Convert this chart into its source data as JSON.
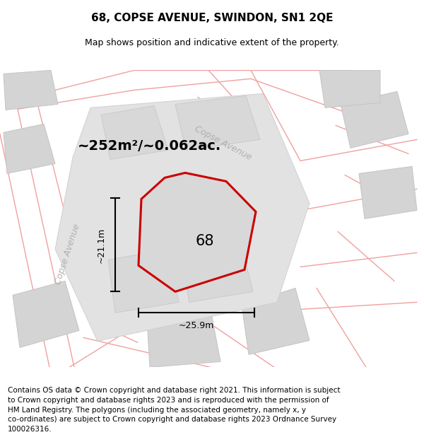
{
  "title": "68, COPSE AVENUE, SWINDON, SN1 2QE",
  "subtitle": "Map shows position and indicative extent of the property.",
  "area_label": "~252m²/~0.062ac.",
  "plot_number": "68",
  "dim_width": "~25.9m",
  "dim_height": "~21.1m",
  "road_label_left": "Copse Avenue",
  "road_label_top": "Copse Avenue",
  "footer_lines": [
    "Contains OS data © Crown copyright and database right 2021. This information is subject",
    "to Crown copyright and database rights 2023 and is reproduced with the permission of",
    "HM Land Registry. The polygons (including the associated geometry, namely x, y",
    "co-ordinates) are subject to Crown copyright and database rights 2023 Ordnance Survey",
    "100026316."
  ],
  "plot_outline_color": "#cc0000",
  "plot_fill_color": "#d8d8d8",
  "road_line_color": "#f0a0a0",
  "neighbor_fill": "#d4d4d4",
  "neighbor_edge": "#c4c4c4",
  "map_bg": "#ebebeb",
  "dim_color": "#000000",
  "title_fontsize": 11,
  "subtitle_fontsize": 9,
  "area_fontsize": 14,
  "plot_num_fontsize": 15,
  "road_label_fontsize": 9,
  "dim_fontsize": 9,
  "footer_fontsize": 7.5
}
